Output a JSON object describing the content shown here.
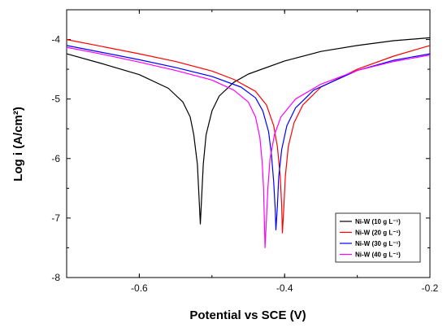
{
  "chart_data": {
    "type": "line",
    "xlabel": "Potential vs SCE (V)",
    "ylabel": "Log i (A/cm²)",
    "xlim": [
      -0.7,
      -0.2
    ],
    "ylim": [
      -8,
      -3.5
    ],
    "x_ticks": [
      -0.6,
      -0.4,
      -0.2
    ],
    "x_tick_labels": [
      "-0.6",
      "-0.4",
      "-0.2"
    ],
    "y_ticks": [
      -8,
      -7,
      -6,
      -5,
      -4
    ],
    "y_tick_labels": [
      "-8",
      "-7",
      "-6",
      "-5",
      "-4"
    ],
    "grid": false,
    "legend_position": "bottom-right",
    "series": [
      {
        "name": "Ni-W (10 g L⁻¹)",
        "color": "#000000",
        "points": [
          [
            -0.7,
            -4.24
          ],
          [
            -0.65,
            -4.41
          ],
          [
            -0.6,
            -4.59
          ],
          [
            -0.56,
            -4.82
          ],
          [
            -0.54,
            -5.05
          ],
          [
            -0.53,
            -5.3
          ],
          [
            -0.525,
            -5.6
          ],
          [
            -0.52,
            -6.1
          ],
          [
            -0.518,
            -6.6
          ],
          [
            -0.516,
            -7.1
          ],
          [
            -0.514,
            -6.6
          ],
          [
            -0.512,
            -6.1
          ],
          [
            -0.508,
            -5.6
          ],
          [
            -0.5,
            -5.2
          ],
          [
            -0.49,
            -4.95
          ],
          [
            -0.47,
            -4.72
          ],
          [
            -0.45,
            -4.58
          ],
          [
            -0.4,
            -4.36
          ],
          [
            -0.35,
            -4.2
          ],
          [
            -0.3,
            -4.1
          ],
          [
            -0.25,
            -4.02
          ],
          [
            -0.2,
            -3.97
          ]
        ]
      },
      {
        "name": "Ni-W (20 g L⁻¹)",
        "color": "#ff0000",
        "points": [
          [
            -0.7,
            -4.0
          ],
          [
            -0.65,
            -4.12
          ],
          [
            -0.6,
            -4.24
          ],
          [
            -0.55,
            -4.37
          ],
          [
            -0.5,
            -4.53
          ],
          [
            -0.47,
            -4.67
          ],
          [
            -0.44,
            -4.87
          ],
          [
            -0.425,
            -5.1
          ],
          [
            -0.415,
            -5.45
          ],
          [
            -0.41,
            -5.8
          ],
          [
            -0.406,
            -6.3
          ],
          [
            -0.404,
            -6.8
          ],
          [
            -0.403,
            -7.25
          ],
          [
            -0.401,
            -6.8
          ],
          [
            -0.399,
            -6.3
          ],
          [
            -0.395,
            -5.8
          ],
          [
            -0.387,
            -5.4
          ],
          [
            -0.375,
            -5.1
          ],
          [
            -0.35,
            -4.8
          ],
          [
            -0.3,
            -4.5
          ],
          [
            -0.25,
            -4.28
          ],
          [
            -0.2,
            -4.1
          ]
        ]
      },
      {
        "name": "Ni-W (30 g L⁻¹)",
        "color": "#0000ff",
        "points": [
          [
            -0.7,
            -4.1
          ],
          [
            -0.65,
            -4.22
          ],
          [
            -0.6,
            -4.34
          ],
          [
            -0.55,
            -4.47
          ],
          [
            -0.5,
            -4.62
          ],
          [
            -0.46,
            -4.8
          ],
          [
            -0.44,
            -4.98
          ],
          [
            -0.43,
            -5.2
          ],
          [
            -0.422,
            -5.55
          ],
          [
            -0.418,
            -5.95
          ],
          [
            -0.415,
            -6.4
          ],
          [
            -0.413,
            -6.85
          ],
          [
            -0.412,
            -7.2
          ],
          [
            -0.41,
            -6.8
          ],
          [
            -0.408,
            -6.3
          ],
          [
            -0.404,
            -5.85
          ],
          [
            -0.397,
            -5.45
          ],
          [
            -0.385,
            -5.15
          ],
          [
            -0.36,
            -4.85
          ],
          [
            -0.3,
            -4.52
          ],
          [
            -0.25,
            -4.35
          ],
          [
            -0.2,
            -4.24
          ]
        ]
      },
      {
        "name": "Ni-W (40 g L⁻¹)",
        "color": "#ff00ff",
        "points": [
          [
            -0.7,
            -4.13
          ],
          [
            -0.65,
            -4.25
          ],
          [
            -0.6,
            -4.38
          ],
          [
            -0.55,
            -4.52
          ],
          [
            -0.5,
            -4.68
          ],
          [
            -0.47,
            -4.85
          ],
          [
            -0.45,
            -5.05
          ],
          [
            -0.44,
            -5.3
          ],
          [
            -0.434,
            -5.65
          ],
          [
            -0.431,
            -6.05
          ],
          [
            -0.429,
            -6.5
          ],
          [
            -0.428,
            -7.0
          ],
          [
            -0.427,
            -7.5
          ],
          [
            -0.425,
            -7.0
          ],
          [
            -0.423,
            -6.5
          ],
          [
            -0.42,
            -6.0
          ],
          [
            -0.414,
            -5.6
          ],
          [
            -0.405,
            -5.3
          ],
          [
            -0.385,
            -5.0
          ],
          [
            -0.35,
            -4.75
          ],
          [
            -0.3,
            -4.52
          ],
          [
            -0.25,
            -4.37
          ],
          [
            -0.2,
            -4.26
          ]
        ]
      }
    ]
  }
}
